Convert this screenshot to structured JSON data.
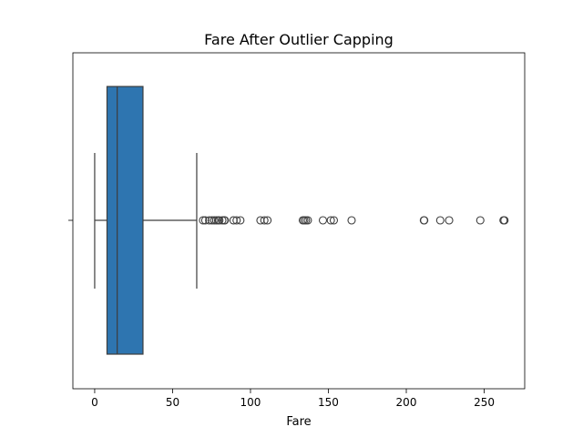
{
  "chart_data": {
    "type": "box",
    "orientation": "horizontal",
    "title": "Fare After Outlier Capping",
    "xlabel": "Fare",
    "ylabel": "",
    "xlim": [
      -14,
      276
    ],
    "xticks": [
      0,
      50,
      100,
      150,
      200,
      250
    ],
    "grid": false,
    "box_color": "#2e75b0",
    "box": {
      "whisker_low": 0,
      "q1": 7.9,
      "median": 14.45,
      "q3": 31.0,
      "whisker_high": 65.5
    },
    "outliers": [
      69.55,
      71.0,
      73.5,
      75.25,
      76.7,
      78.0,
      79.2,
      80.0,
      81.9,
      83.2,
      83.5,
      89.1,
      91.1,
      93.5,
      106.4,
      108.9,
      110.9,
      133.6,
      134.5,
      135.6,
      136.8,
      146.5,
      151.55,
      153.5,
      164.9,
      211.3,
      211.5,
      221.8,
      227.5,
      247.5,
      262.4,
      263.0
    ]
  }
}
